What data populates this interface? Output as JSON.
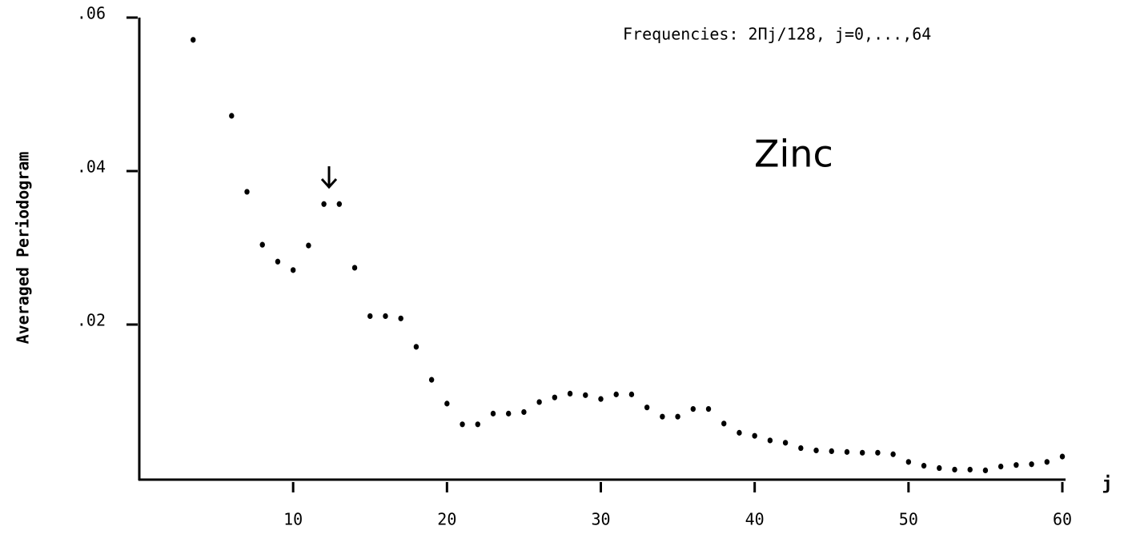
{
  "chart_data": {
    "type": "scatter",
    "x_label": "j",
    "y_label": "Averaged Periodogram",
    "annotations": [
      "Frequencies:  2Πj/128,  j=0,...,64",
      "Zinc"
    ],
    "x": [
      3.5,
      6,
      7,
      8,
      9,
      10,
      11,
      12,
      13,
      14,
      15,
      16,
      17,
      18,
      19,
      20,
      21,
      22,
      23,
      24,
      25,
      26,
      27,
      28,
      29,
      30,
      31,
      32,
      33,
      34,
      35,
      36,
      37,
      38,
      39,
      40,
      41,
      42,
      43,
      44,
      45,
      46,
      47,
      48,
      49,
      50,
      51,
      52,
      53,
      54,
      55,
      56,
      57,
      58,
      59,
      60
    ],
    "values": [
      0.0571,
      0.0472,
      0.0373,
      0.0304,
      0.0282,
      0.0271,
      0.0303,
      0.0357,
      0.0357,
      0.0274,
      0.0211,
      0.0211,
      0.0208,
      0.0171,
      0.0128,
      0.0097,
      0.007,
      0.007,
      0.0084,
      0.0084,
      0.0086,
      0.0099,
      0.0105,
      0.011,
      0.0108,
      0.0103,
      0.0109,
      0.0109,
      0.0092,
      0.008,
      0.008,
      0.009,
      0.009,
      0.0071,
      0.0059,
      0.0055,
      0.0049,
      0.0046,
      0.0039,
      0.0036,
      0.0035,
      0.0034,
      0.0033,
      0.0033,
      0.0031,
      0.0021,
      0.0016,
      0.0013,
      0.0011,
      0.0011,
      0.001,
      0.0015,
      0.0017,
      0.0018,
      0.0021,
      0.0028
    ],
    "color": "#000000",
    "xlim": [
      0,
      60
    ],
    "xticks": [
      10,
      20,
      30,
      40,
      50,
      60
    ],
    "ylim": [
      0,
      0.06
    ],
    "yticks": [
      {
        "value": 0.02,
        "label": ".02"
      },
      {
        "value": 0.04,
        "label": ".04"
      },
      {
        "value": 0.06,
        "label": ".06"
      }
    ]
  }
}
